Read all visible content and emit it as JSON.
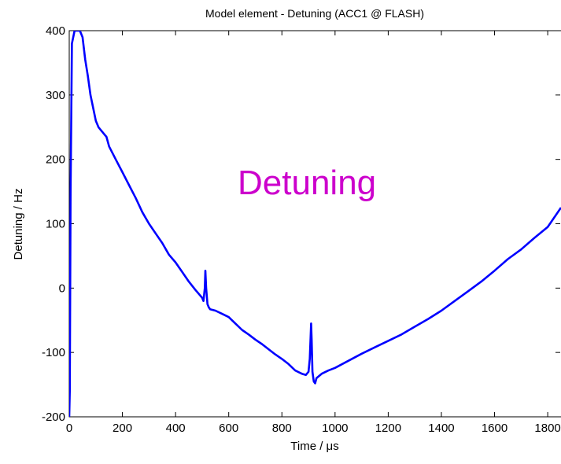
{
  "chart_data": {
    "type": "line",
    "title": "Model element - Detuning (ACC1 @ FLASH)",
    "xlabel": "Time / μs",
    "ylabel": "Detuning / Hz",
    "xlim": [
      0,
      1850
    ],
    "ylim": [
      -200,
      400
    ],
    "x_ticks": [
      0,
      200,
      400,
      600,
      800,
      1000,
      1200,
      1400,
      1600,
      1800
    ],
    "x_tick_labels": [
      "0",
      "200",
      "400",
      "600",
      "800",
      "1000",
      "1200",
      "1400",
      "1600",
      "1800"
    ],
    "y_ticks": [
      -200,
      -100,
      0,
      100,
      200,
      300,
      400
    ],
    "y_tick_labels": [
      "-200",
      "-100",
      "0",
      "100",
      "200",
      "300",
      "400"
    ],
    "grid": false,
    "legend": "none",
    "annotations": [
      {
        "text": "Detuning",
        "color": "#cc00cc"
      }
    ],
    "series": [
      {
        "color": "#0000ff",
        "x": [
          0,
          2,
          5,
          10,
          20,
          30,
          40,
          50,
          60,
          70,
          80,
          90,
          100,
          110,
          120,
          130,
          140,
          150,
          175,
          200,
          225,
          250,
          275,
          300,
          325,
          350,
          375,
          400,
          425,
          450,
          475,
          500,
          505,
          510,
          512,
          515,
          520,
          525,
          530,
          550,
          575,
          600,
          625,
          650,
          675,
          700,
          725,
          750,
          775,
          800,
          825,
          850,
          875,
          890,
          900,
          905,
          908,
          910,
          912,
          915,
          920,
          925,
          930,
          950,
          975,
          1000,
          1050,
          1100,
          1150,
          1200,
          1250,
          1300,
          1350,
          1400,
          1450,
          1500,
          1550,
          1600,
          1650,
          1700,
          1750,
          1800,
          1825,
          1850
        ],
        "y": [
          -200,
          -160,
          150,
          380,
          400,
          400,
          400,
          390,
          355,
          330,
          300,
          280,
          260,
          250,
          245,
          240,
          235,
          220,
          200,
          180,
          160,
          140,
          118,
          100,
          85,
          70,
          52,
          40,
          25,
          10,
          -3,
          -15,
          -20,
          0,
          27,
          0,
          -25,
          -30,
          -33,
          -35,
          -40,
          -45,
          -55,
          -65,
          -72,
          -80,
          -87,
          -95,
          -103,
          -110,
          -118,
          -128,
          -133,
          -135,
          -130,
          -110,
          -75,
          -55,
          -80,
          -130,
          -145,
          -148,
          -140,
          -133,
          -128,
          -124,
          -113,
          -102,
          -92,
          -82,
          -72,
          -60,
          -48,
          -35,
          -20,
          -5,
          10,
          27,
          45,
          60,
          78,
          95,
          110,
          125
        ]
      }
    ]
  }
}
